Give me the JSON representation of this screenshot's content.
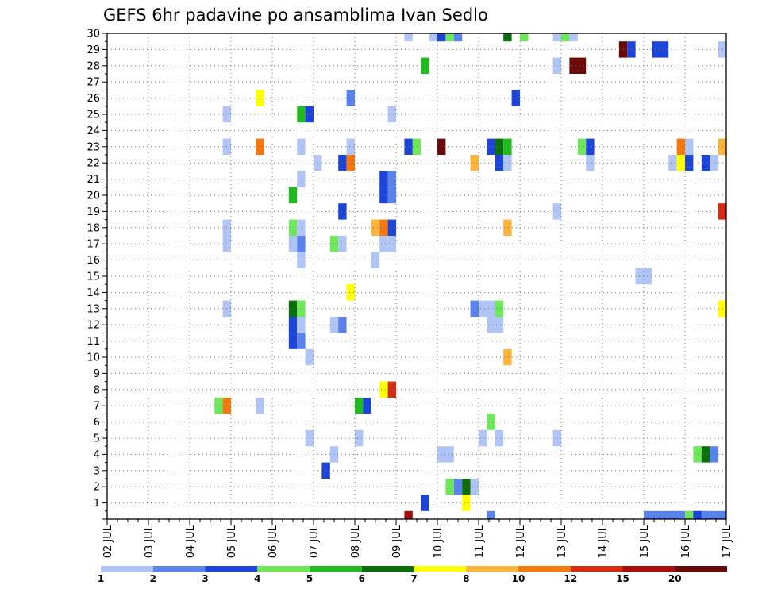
{
  "chart_data": {
    "type": "heatmap",
    "title": "GEFS 6hr padavine po ansamblima Ivan Sedlo",
    "xlabel": "",
    "ylabel": "",
    "x_ticks": [
      "02 JUL",
      "03 JUL",
      "04 JUL",
      "05 JUL",
      "06 JUL",
      "07 JUL",
      "08 JUL",
      "09 JUL",
      "10 JUL",
      "11 JUL",
      "12 JUL",
      "13 JUL",
      "14 JUL",
      "15 JUL",
      "16 JUL",
      "17 JUL"
    ],
    "x_range_days": [
      0,
      15
    ],
    "y_ticks": [
      1,
      2,
      3,
      4,
      5,
      6,
      7,
      8,
      9,
      10,
      11,
      12,
      13,
      14,
      15,
      16,
      17,
      18,
      19,
      20,
      21,
      22,
      23,
      24,
      25,
      26,
      27,
      28,
      29,
      30
    ],
    "y_range": [
      0,
      30
    ],
    "grid": true,
    "legend": "bottom",
    "colorbar": {
      "ticks": [
        "1",
        "2",
        "3",
        "4",
        "5",
        "6",
        "7",
        "8",
        "10",
        "12",
        "15",
        "20"
      ],
      "colors": [
        "#b0c4f5",
        "#5a82ec",
        "#1c44d6",
        "#6ee85a",
        "#1fba1f",
        "#0b6e0b",
        "#ffff00",
        "#fbb43c",
        "#f47a0f",
        "#d62a12",
        "#a80d0d",
        "#6b0808"
      ]
    },
    "cells": [
      {
        "member": 0,
        "t": [
          [
            7.2,
            7.4
          ],
          [
            9.2,
            9.4
          ],
          [
            13.0,
            14.6
          ]
        ],
        "c": [
          10,
          1,
          1
        ]
      },
      {
        "member": 0,
        "t": [
          [
            14.0,
            14.2
          ],
          [
            14.2,
            14.4
          ]
        ],
        "c": [
          3,
          2
        ]
      },
      {
        "member": 0,
        "t": [
          [
            14.4,
            15.0
          ]
        ],
        "c": [
          1
        ]
      },
      {
        "member": 1,
        "t": [
          [
            7.6,
            7.8
          ],
          [
            8.6,
            8.8
          ]
        ],
        "c": [
          2,
          6
        ]
      },
      {
        "member": 2,
        "t": [
          [
            8.2,
            8.4
          ],
          [
            8.4,
            8.6
          ],
          [
            8.6,
            8.8
          ],
          [
            8.8,
            9.0
          ]
        ],
        "c": [
          3,
          1,
          5,
          0
        ]
      },
      {
        "member": 3,
        "t": [
          [
            5.2,
            5.4
          ]
        ],
        "c": [
          2
        ]
      },
      {
        "member": 4,
        "t": [
          [
            5.4,
            5.6
          ],
          [
            8.0,
            8.4
          ],
          [
            14.2,
            14.4
          ],
          [
            14.4,
            14.6
          ],
          [
            14.6,
            14.8
          ]
        ],
        "c": [
          0,
          0,
          3,
          5,
          1
        ]
      },
      {
        "member": 5,
        "t": [
          [
            4.8,
            5.0
          ],
          [
            6.0,
            6.2
          ],
          [
            9.0,
            9.2
          ],
          [
            9.4,
            9.6
          ],
          [
            10.8,
            11.0
          ]
        ],
        "c": [
          0,
          0,
          0,
          0,
          0
        ]
      },
      {
        "member": 6,
        "t": [
          [
            9.2,
            9.4
          ]
        ],
        "c": [
          3
        ]
      },
      {
        "member": 7,
        "t": [
          [
            2.6,
            2.8
          ],
          [
            2.8,
            3.0
          ],
          [
            3.6,
            3.8
          ],
          [
            6.0,
            6.2
          ],
          [
            6.2,
            6.4
          ]
        ],
        "c": [
          3,
          8,
          0,
          4,
          2
        ]
      },
      {
        "member": 8,
        "t": [
          [
            6.6,
            6.8
          ],
          [
            6.8,
            7.0
          ]
        ],
        "c": [
          6,
          9
        ]
      },
      {
        "member": 10,
        "t": [
          [
            4.8,
            5.0
          ],
          [
            9.6,
            9.8
          ]
        ],
        "c": [
          0,
          7
        ]
      },
      {
        "member": 11,
        "t": [
          [
            4.4,
            4.6
          ],
          [
            4.6,
            4.8
          ]
        ],
        "c": [
          2,
          1
        ]
      },
      {
        "member": 12,
        "t": [
          [
            4.4,
            4.6
          ],
          [
            4.6,
            4.8
          ],
          [
            5.4,
            5.6
          ],
          [
            5.6,
            5.8
          ],
          [
            9.2,
            9.6
          ]
        ],
        "c": [
          2,
          0,
          0,
          1,
          0
        ]
      },
      {
        "member": 13,
        "t": [
          [
            2.8,
            3.0
          ],
          [
            4.4,
            4.6
          ],
          [
            4.6,
            4.8
          ],
          [
            8.8,
            9.0
          ],
          [
            9.0,
            9.4
          ],
          [
            9.4,
            9.6
          ],
          [
            14.8,
            15.0
          ]
        ],
        "c": [
          0,
          5,
          3,
          1,
          0,
          3,
          6
        ]
      },
      {
        "member": 14,
        "t": [
          [
            5.8,
            6.0
          ]
        ],
        "c": [
          6
        ]
      },
      {
        "member": 15,
        "t": [
          [
            12.8,
            13.2
          ]
        ],
        "c": [
          0
        ]
      },
      {
        "member": 16,
        "t": [
          [
            4.6,
            4.8
          ],
          [
            6.4,
            6.6
          ]
        ],
        "c": [
          0,
          0
        ]
      },
      {
        "member": 17,
        "t": [
          [
            2.8,
            3.0
          ],
          [
            4.4,
            4.6
          ],
          [
            4.6,
            4.8
          ],
          [
            5.4,
            5.6
          ],
          [
            5.6,
            5.8
          ],
          [
            6.6,
            6.8
          ],
          [
            6.8,
            7.0
          ]
        ],
        "c": [
          0,
          0,
          1,
          3,
          0,
          0,
          0
        ]
      },
      {
        "member": 18,
        "t": [
          [
            2.8,
            3.0
          ],
          [
            4.4,
            4.6
          ],
          [
            4.6,
            4.8
          ],
          [
            6.4,
            6.6
          ],
          [
            6.6,
            6.8
          ],
          [
            6.8,
            7.0
          ],
          [
            9.6,
            9.8
          ]
        ],
        "c": [
          0,
          3,
          0,
          7,
          8,
          2,
          7
        ]
      },
      {
        "member": 19,
        "t": [
          [
            5.6,
            5.8
          ],
          [
            10.8,
            11.0
          ],
          [
            14.8,
            15.0
          ]
        ],
        "c": [
          2,
          0,
          9
        ]
      },
      {
        "member": 20,
        "t": [
          [
            4.4,
            4.6
          ],
          [
            6.6,
            6.8
          ],
          [
            6.8,
            7.0
          ]
        ],
        "c": [
          4,
          2,
          1
        ]
      },
      {
        "member": 21,
        "t": [
          [
            4.6,
            4.8
          ],
          [
            6.6,
            6.8
          ],
          [
            6.8,
            7.0
          ]
        ],
        "c": [
          0,
          2,
          1
        ]
      },
      {
        "member": 22,
        "t": [
          [
            5.0,
            5.2
          ],
          [
            5.6,
            5.8
          ],
          [
            5.8,
            6.0
          ],
          [
            8.8,
            9.0
          ],
          [
            9.4,
            9.6
          ],
          [
            9.6,
            9.8
          ],
          [
            11.6,
            11.8
          ],
          [
            13.6,
            13.8
          ],
          [
            13.8,
            14.0
          ],
          [
            14.0,
            14.2
          ],
          [
            14.4,
            14.6
          ],
          [
            14.6,
            14.8
          ]
        ],
        "c": [
          0,
          2,
          8,
          7,
          2,
          0,
          0,
          0,
          6,
          2,
          2,
          0
        ]
      },
      {
        "member": 23,
        "t": [
          [
            2.8,
            3.0
          ],
          [
            3.6,
            3.8
          ],
          [
            4.6,
            4.8
          ],
          [
            5.8,
            6.0
          ],
          [
            7.2,
            7.4
          ],
          [
            7.4,
            7.6
          ],
          [
            8.0,
            8.2
          ],
          [
            9.2,
            9.4
          ],
          [
            9.4,
            9.6
          ],
          [
            9.6,
            9.8
          ],
          [
            11.4,
            11.6
          ],
          [
            11.6,
            11.8
          ],
          [
            13.8,
            14.0
          ],
          [
            14.0,
            14.2
          ],
          [
            14.8,
            15.0
          ]
        ],
        "c": [
          0,
          8,
          0,
          0,
          2,
          3,
          11,
          2,
          5,
          4,
          3,
          2,
          8,
          0,
          7
        ]
      },
      {
        "member": 25,
        "t": [
          [
            2.8,
            3.0
          ],
          [
            4.6,
            4.8
          ],
          [
            4.8,
            5.0
          ],
          [
            6.8,
            7.0
          ]
        ],
        "c": [
          0,
          4,
          2,
          0
        ]
      },
      {
        "member": 26,
        "t": [
          [
            3.6,
            3.8
          ],
          [
            5.8,
            6.0
          ],
          [
            9.8,
            10.0
          ]
        ],
        "c": [
          6,
          1,
          2
        ]
      },
      {
        "member": 28,
        "t": [
          [
            7.6,
            7.8
          ],
          [
            10.8,
            11.0
          ],
          [
            11.2,
            11.6
          ]
        ],
        "c": [
          4,
          0,
          11
        ]
      },
      {
        "member": 29,
        "t": [
          [
            12.4,
            12.6
          ],
          [
            12.6,
            12.8
          ],
          [
            13.2,
            13.4
          ],
          [
            13.4,
            13.6
          ],
          [
            14.8,
            15.0
          ]
        ],
        "c": [
          11,
          2,
          2,
          2,
          0
        ]
      },
      {
        "member": 30,
        "t": [
          [
            7.2,
            7.4
          ],
          [
            7.8,
            8.0
          ],
          [
            8.0,
            8.2
          ],
          [
            8.2,
            8.4
          ],
          [
            8.4,
            8.6
          ],
          [
            9.6,
            9.8
          ],
          [
            10.0,
            10.2
          ],
          [
            10.8,
            11.0
          ],
          [
            11.0,
            11.2
          ],
          [
            11.2,
            11.4
          ]
        ],
        "c": [
          0,
          0,
          2,
          3,
          1,
          5,
          3,
          0,
          3,
          0
        ]
      }
    ]
  }
}
